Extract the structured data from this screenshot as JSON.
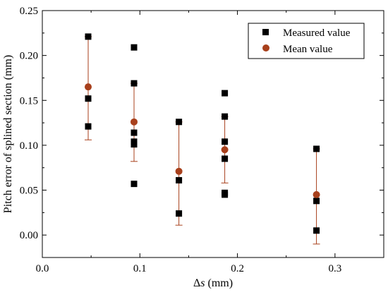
{
  "chart_data": {
    "type": "scatter",
    "xlabel_prefix": "Δ",
    "xlabel_var": "s",
    "xlabel_unit": " (mm)",
    "ylabel": "Pitch error of splined section (mm)",
    "xlim": [
      0.0,
      0.35
    ],
    "ylim": [
      -0.025,
      0.25
    ],
    "x_ticks": [
      0.0,
      0.1,
      0.2,
      0.3
    ],
    "x_tick_labels": [
      "0.0",
      "0.1",
      "0.2",
      "0.3"
    ],
    "y_ticks": [
      0.0,
      0.05,
      0.1,
      0.15,
      0.2,
      0.25
    ],
    "y_tick_labels": [
      "0.00",
      "0.05",
      "0.10",
      "0.15",
      "0.20",
      "0.25"
    ],
    "grid": false,
    "legend_position": "top-right",
    "series": [
      {
        "name": "Measured value",
        "marker": "square",
        "color": "#000000",
        "points": [
          {
            "x": 0.047,
            "y": 0.221
          },
          {
            "x": 0.047,
            "y": 0.152
          },
          {
            "x": 0.047,
            "y": 0.121
          },
          {
            "x": 0.094,
            "y": 0.209
          },
          {
            "x": 0.094,
            "y": 0.169
          },
          {
            "x": 0.094,
            "y": 0.114
          },
          {
            "x": 0.094,
            "y": 0.104
          },
          {
            "x": 0.094,
            "y": 0.101
          },
          {
            "x": 0.094,
            "y": 0.057
          },
          {
            "x": 0.14,
            "y": 0.126
          },
          {
            "x": 0.14,
            "y": 0.061
          },
          {
            "x": 0.14,
            "y": 0.024
          },
          {
            "x": 0.187,
            "y": 0.158
          },
          {
            "x": 0.187,
            "y": 0.132
          },
          {
            "x": 0.187,
            "y": 0.104
          },
          {
            "x": 0.187,
            "y": 0.085
          },
          {
            "x": 0.187,
            "y": 0.047
          },
          {
            "x": 0.187,
            "y": 0.045
          },
          {
            "x": 0.281,
            "y": 0.096
          },
          {
            "x": 0.281,
            "y": 0.038
          },
          {
            "x": 0.281,
            "y": 0.005
          }
        ]
      },
      {
        "name": "Mean value",
        "marker": "circle",
        "color": "#a8401c",
        "points": [
          {
            "x": 0.047,
            "y": 0.165,
            "err_low": 0.106,
            "err_high": 0.221
          },
          {
            "x": 0.094,
            "y": 0.126,
            "err_low": 0.082,
            "err_high": 0.169
          },
          {
            "x": 0.14,
            "y": 0.071,
            "err_low": 0.011,
            "err_high": 0.126
          },
          {
            "x": 0.187,
            "y": 0.095,
            "err_low": 0.058,
            "err_high": 0.132
          },
          {
            "x": 0.281,
            "y": 0.045,
            "err_low": -0.01,
            "err_high": 0.096
          }
        ]
      }
    ]
  }
}
